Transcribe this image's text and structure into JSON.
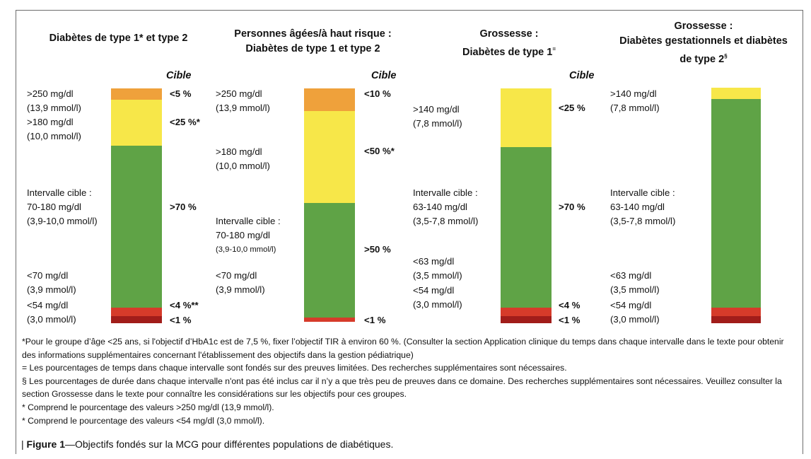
{
  "chart_data": [
    {
      "type": "bar",
      "title": "Diabètes de type 1* et type 2",
      "target_header": "Cible",
      "segments": [
        {
          "range": "<54 mg/dl (3,0 mmol/l)",
          "target": "<1 %",
          "color": "#a11d1a"
        },
        {
          "range": "<70 mg/dl (3,9 mmol/l)",
          "target": "<4 %**",
          "color": "#d63b2a"
        },
        {
          "range": "Intervalle cible : 70-180 mg/dl (3,9-10,0 mmol/l)",
          "target": ">70 %",
          "color": "#5fa346"
        },
        {
          "range": ">180 mg/dl (10,0 mmol/l)",
          "target": "<25 %*",
          "color": "#f7e749"
        },
        {
          "range": ">250 mg/dl (13,9 mmol/l)",
          "target": "<5 %",
          "color": "#efa13b"
        }
      ]
    },
    {
      "type": "bar",
      "title": "Personnes âgées/à haut risque : Diabètes de type 1 et type 2",
      "target_header": "Cible",
      "segments": [
        {
          "range": "<70 mg/dl (3,9 mmol/l)",
          "target": "<1 %",
          "color": "#d63b2a"
        },
        {
          "range": "Intervalle cible : 70-180 mg/dl (3,9-10,0 mmol/l)",
          "target": ">50 %",
          "color": "#5fa346"
        },
        {
          "range": ">180 mg/dl (10,0 mmol/l)",
          "target": "<50 %*",
          "color": "#f7e749"
        },
        {
          "range": ">250 mg/dl (13,9 mmol/l)",
          "target": "<10 %",
          "color": "#efa13b"
        }
      ]
    },
    {
      "type": "bar",
      "title": "Grossesse : Diabètes de type 1=",
      "target_header": "Cible",
      "segments": [
        {
          "range": "<54 mg/dl (3,0 mmol/l)",
          "target": "<1 %",
          "color": "#a11d1a"
        },
        {
          "range": "<63 mg/dl (3,5 mmol/l)",
          "target": "<4 %",
          "color": "#d63b2a"
        },
        {
          "range": "Intervalle cible : 63-140 mg/dl (3,5-7,8 mmol/l)",
          "target": ">70 %",
          "color": "#5fa346"
        },
        {
          "range": ">140 mg/dl (7,8 mmol/l)",
          "target": "<25 %",
          "color": "#f7e749"
        }
      ]
    },
    {
      "type": "bar",
      "title": "Grossesse : Diabètes gestationnels et diabètes de type 2§",
      "segments": [
        {
          "range": "<54 mg/dl (3,0 mmol/l)",
          "color": "#a11d1a"
        },
        {
          "range": "<63 mg/dl (3,5 mmol/l)",
          "color": "#d63b2a"
        },
        {
          "range": "Intervalle cible : 63-140 mg/dl (3,5-7,8 mmol/l)",
          "color": "#5fa346"
        },
        {
          "range": ">140 mg/dl (7,8 mmol/l)",
          "color": "#f7e749"
        }
      ]
    }
  ],
  "colors": {
    "very_high": "#efa13b",
    "high": "#f7e749",
    "target": "#5fa346",
    "low": "#d63b2a",
    "very_low": "#a11d1a"
  },
  "p1": {
    "title1": "Diabètes de type 1* et type 2",
    "cible": "Cible",
    "l1a": ">250 mg/dl",
    "l1b": "(13,9 mmol/l)",
    "l2a": ">180 mg/dl",
    "l2b": "(10,0 mmol/l)",
    "l3a": "Intervalle cible :",
    "l3b": "70-180 mg/dl",
    "l3c": "(3,9-10,0 mmol/l)",
    "l4a": "<70 mg/dl",
    "l4b": "(3,9 mmol/l)",
    "l5a": "<54 mg/dl",
    "l5b": "(3,0 mmol/l)",
    "t1": "<5 %",
    "t2": "<25 %*",
    "t3": ">70 %",
    "t4": "<4 %**",
    "t5": "<1 %"
  },
  "p2": {
    "title1": "Personnes âgées/à haut risque :",
    "title2": "Diabètes de type 1 et type 2",
    "cible": "Cible",
    "l1a": ">250 mg/dl",
    "l1b": "(13,9 mmol/l)",
    "l2a": ">180 mg/dl",
    "l2b": "(10,0 mmol/l)",
    "l3a": "Intervalle cible :",
    "l3b": "70-180 mg/dl",
    "l3c": "(3,9-10,0 mmol/l)",
    "l4a": "<70 mg/dl",
    "l4b": "(3,9 mmol/l)",
    "t1": "<10 %",
    "t2": "<50 %*",
    "t3": ">50 %",
    "t4": "<1 %"
  },
  "p3": {
    "title1": "Grossesse :",
    "title2": "Diabètes de type 1",
    "title2_sup": "=",
    "cible": "Cible",
    "l1a": ">140 mg/dl",
    "l1b": "(7,8 mmol/l)",
    "l2a": "Intervalle cible :",
    "l2b": "63-140 mg/dl",
    "l2c": "(3,5-7,8 mmol/l)",
    "l3a": "<63 mg/dl",
    "l3b": "(3,5 mmol/l)",
    "l4a": "<54 mg/dl",
    "l4b": "(3,0 mmol/l)",
    "t1": "<25 %",
    "t2": ">70 %",
    "t3": "<4 %",
    "t4": "<1 %"
  },
  "p4": {
    "title1": "Grossesse :",
    "title2": "Diabètes gestationnels et diabètes",
    "title3": "de type 2",
    "title3_sup": "§",
    "l1a": ">140 mg/dl",
    "l1b": "(7,8 mmol/l)",
    "l2a": "Intervalle cible :",
    "l2b": "63-140 mg/dl",
    "l2c": "(3,5-7,8 mmol/l)",
    "l3a": "<63 mg/dl",
    "l3b": "(3,5 mmol/l)",
    "l4a": "<54 mg/dl",
    "l4b": "(3,0 mmol/l)"
  },
  "notes": {
    "n1": "*Pour le groupe d’âge <25 ans, si l'objectif d’HbA1c est de 7,5 %, fixer l’objectif TIR à environ 60 %. (Consulter la section Application clinique du temps dans chaque intervalle dans le texte pour obtenir des informations supplémentaires concernant l'établissement des objectifs dans la gestion pédiatrique)",
    "n2": "= Les pourcentages de temps dans chaque intervalle sont fondés sur des preuves limitées. Des recherches supplémentaires sont nécessaires.",
    "n3": "§ Les pourcentages de durée dans chaque intervalle n'ont pas été inclus car il n’y a que très peu de preuves dans ce domaine. Des recherches supplémentaires sont nécessaires. Veuillez consulter la section Grossesse dans le texte pour connaître les considérations sur les objectifs pour ces groupes.",
    "n4": "* Comprend le pourcentage des valeurs >250 mg/dl (13,9 mmol/l).",
    "n5": "* Comprend le pourcentage des valeurs <54 mg/dl (3,0 mmol/l)."
  },
  "caption": {
    "bar": "|",
    "label": "Figure 1",
    "text": "—Objectifs fondés sur la MCG pour différentes populations de diabétiques."
  }
}
